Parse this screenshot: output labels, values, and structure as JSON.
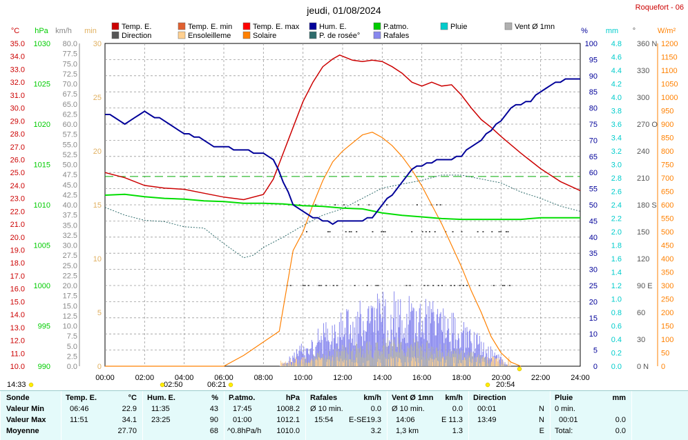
{
  "header": {
    "title": "jeudi, 01/08/2024",
    "station": "Roquefort - 06"
  },
  "legend": [
    {
      "label": "Temp. E.",
      "color": "#cc0000"
    },
    {
      "label": "Temp. E. min",
      "color": "#e06030"
    },
    {
      "label": "Temp. E. max",
      "color": "#ff0000"
    },
    {
      "label": "Hum. E.",
      "color": "#000099"
    },
    {
      "label": "P.atmo.",
      "color": "#00cc00"
    },
    {
      "label": "Pluie",
      "color": "#00cccc"
    },
    {
      "label": "Vent Ø 1mn",
      "color": "#b0b0b0"
    },
    {
      "label": "Direction",
      "color": "#555555"
    },
    {
      "label": "Ensoleilleme",
      "color": "#ffd090"
    },
    {
      "label": "Solaire",
      "color": "#ff8000"
    },
    {
      "label": "P. de rosée°",
      "color": "#2e6b6b"
    },
    {
      "label": "Rafales",
      "color": "#8888ee"
    }
  ],
  "axes": {
    "temp": {
      "unit": "°C",
      "ticks": [
        "35.0",
        "34.0",
        "33.0",
        "32.0",
        "31.0",
        "30.0",
        "29.0",
        "28.0",
        "27.0",
        "26.0",
        "25.0",
        "24.0",
        "23.0",
        "22.0",
        "21.0",
        "20.0",
        "19.0",
        "18.0",
        "17.0",
        "16.0",
        "15.0",
        "14.0",
        "13.0",
        "12.0",
        "11.0",
        "10.0"
      ],
      "color": "#cc0000"
    },
    "pressure": {
      "unit": "hPa",
      "ticks": [
        "1030",
        "1025",
        "1020",
        "1015",
        "1010",
        "1005",
        "1000",
        "995",
        "990"
      ],
      "color": "#00cc00"
    },
    "wind": {
      "unit": "km/h",
      "ticks": [
        "80.0",
        "77.5",
        "75.0",
        "72.5",
        "70.0",
        "67.5",
        "65.0",
        "62.5",
        "60.0",
        "57.5",
        "55.0",
        "52.5",
        "50.0",
        "47.5",
        "45.0",
        "42.5",
        "40.0",
        "37.5",
        "35.0",
        "32.5",
        "30.0",
        "27.5",
        "25.0",
        "22.5",
        "20.0",
        "17.5",
        "15.0",
        "12.5",
        "10.0",
        "7.5",
        "5.0",
        "2.5",
        "0.0"
      ],
      "color": "#999999"
    },
    "min": {
      "unit": "min",
      "ticks": [
        "30",
        "25",
        "20",
        "15",
        "10",
        "5",
        "0"
      ],
      "color": "#e0b060"
    },
    "hum": {
      "unit": "%",
      "ticks": [
        "100",
        "95",
        "90",
        "85",
        "80",
        "75",
        "70",
        "65",
        "60",
        "55",
        "50",
        "45",
        "40",
        "35",
        "30",
        "25",
        "20",
        "15",
        "10",
        "5",
        "0"
      ],
      "color": "#000099"
    },
    "rain": {
      "unit": "mm",
      "ticks": [
        "4.8",
        "4.6",
        "4.4",
        "4.2",
        "4.0",
        "3.8",
        "3.6",
        "3.4",
        "3.2",
        "3.0",
        "2.8",
        "2.6",
        "2.4",
        "2.2",
        "2.0",
        "1.8",
        "1.6",
        "1.4",
        "1.2",
        "1.0",
        "0.8",
        "0.6",
        "0.4",
        "0.2",
        "0.0"
      ],
      "color": "#00cccc"
    },
    "dir": {
      "unit": "°",
      "ticks": [
        "360 N",
        "330",
        "300",
        "270 O",
        "240",
        "210",
        "180 S",
        "150",
        "120",
        "90 E",
        "60",
        "30",
        "0 N"
      ],
      "color": "#555555"
    },
    "solar": {
      "unit": "W/m²",
      "ticks": [
        "1200",
        "1150",
        "1100",
        "1050",
        "1000",
        "950",
        "900",
        "850",
        "800",
        "750",
        "700",
        "650",
        "600",
        "550",
        "500",
        "450",
        "400",
        "350",
        "300",
        "250",
        "200",
        "150",
        "100",
        "50",
        "0"
      ],
      "color": "#ff8000"
    },
    "time": {
      "ticks": [
        "00:00",
        "02:00",
        "04:00",
        "06:00",
        "08:00",
        "10:00",
        "12:00",
        "14:00",
        "16:00",
        "18:00",
        "20:00",
        "22:00",
        "24:00"
      ]
    }
  },
  "markers": {
    "t1": "14:33",
    "t2": "02:50",
    "t3": "06:21",
    "t4": "20:54"
  },
  "chart_data": {
    "type": "line",
    "title": "jeudi, 01/08/2024",
    "xlim": [
      0,
      24
    ],
    "series": [
      {
        "name": "Temp. E.",
        "unit": "°C",
        "x": [
          0,
          1,
          2,
          3,
          4,
          5,
          6,
          7,
          8,
          8.5,
          9,
          9.5,
          10,
          10.5,
          11,
          11.5,
          11.85,
          12.5,
          13,
          13.5,
          14,
          14.5,
          15,
          15.5,
          16,
          16.5,
          17,
          17.5,
          18,
          18.5,
          19,
          19.5,
          20,
          21,
          22,
          23,
          24
        ],
        "y": [
          25.0,
          24.6,
          24.0,
          23.8,
          23.7,
          23.4,
          23.1,
          22.9,
          23.3,
          24.5,
          26.5,
          28.5,
          30.5,
          32.0,
          33.2,
          33.8,
          34.1,
          33.7,
          33.6,
          33.7,
          33.6,
          33.2,
          32.7,
          32.0,
          31.7,
          32.0,
          31.7,
          31.8,
          31.0,
          30.0,
          29.1,
          28.5,
          27.8,
          26.5,
          25.3,
          24.3,
          23.6
        ]
      },
      {
        "name": "Hum. E.",
        "unit": "%",
        "x": [
          0,
          0.5,
          1,
          1.5,
          2,
          2.5,
          3,
          3.5,
          4,
          4.5,
          5,
          5.5,
          6,
          6.5,
          7,
          7.5,
          8,
          8.5,
          9,
          9.5,
          10,
          10.5,
          11,
          11.5,
          12,
          12.5,
          13,
          13.5,
          14,
          14.5,
          15,
          15.5,
          16,
          16.5,
          17,
          17.5,
          18,
          18.5,
          19,
          19.5,
          20,
          20.5,
          21,
          21.5,
          22,
          22.5,
          23,
          23.5,
          24
        ],
        "y": [
          78,
          77,
          75,
          77,
          79,
          77,
          76,
          74,
          72,
          71,
          70,
          68,
          68,
          67,
          67,
          66,
          66,
          64,
          57,
          50,
          48,
          46,
          45,
          44,
          45,
          45,
          45,
          46,
          50,
          53,
          57,
          61,
          62,
          63,
          64,
          64,
          65,
          68,
          70,
          73,
          76,
          80,
          81,
          82,
          85,
          87,
          88,
          89,
          89
        ]
      },
      {
        "name": "P.atmo.",
        "unit": "hPa",
        "x": [
          0,
          1,
          2,
          3,
          4,
          5,
          6,
          7,
          8,
          9,
          10,
          11,
          12,
          13,
          14,
          15,
          16,
          17,
          18,
          19,
          20,
          21,
          22,
          23,
          24
        ],
        "y": [
          1011.2,
          1011.3,
          1011.0,
          1010.8,
          1010.7,
          1010.5,
          1010.4,
          1010.2,
          1010.2,
          1010.1,
          1009.9,
          1009.8,
          1009.6,
          1009.5,
          1009.0,
          1008.7,
          1008.5,
          1008.3,
          1008.2,
          1008.2,
          1008.2,
          1008.2,
          1008.4,
          1008.4,
          1008.4
        ]
      },
      {
        "name": "P. de rosée°",
        "unit": "°C",
        "x": [
          0,
          1,
          2,
          3,
          4,
          5,
          6,
          7,
          7.5,
          8,
          9,
          10,
          11,
          12,
          13,
          14,
          15,
          16,
          17,
          18,
          19,
          20,
          21,
          22,
          23,
          24
        ],
        "y": [
          22.3,
          21.7,
          21.3,
          21.2,
          20.8,
          20.7,
          19.5,
          18.4,
          18.6,
          19.2,
          20.0,
          20.9,
          21.7,
          22.2,
          23.0,
          23.8,
          24.1,
          24.4,
          24.8,
          24.8,
          24.5,
          24.2,
          23.5,
          23.0,
          22.4,
          22.0
        ]
      },
      {
        "name": "Solaire",
        "unit": "W/m²",
        "x": [
          0,
          6,
          7,
          8,
          8.8,
          9.5,
          10,
          10.5,
          11,
          11.5,
          12,
          12.5,
          13,
          13.5,
          14,
          14.5,
          15,
          15.5,
          16,
          16.5,
          17,
          17.5,
          18,
          18.5,
          19,
          19.5,
          20,
          20.5,
          21
        ],
        "y": [
          0,
          0,
          40,
          90,
          130,
          430,
          500,
          600,
          690,
          760,
          800,
          830,
          860,
          870,
          850,
          820,
          780,
          730,
          670,
          600,
          530,
          450,
          370,
          280,
          200,
          110,
          50,
          15,
          0
        ]
      },
      {
        "name": "Temp. E. max",
        "unit": "°C",
        "x": [
          0,
          24
        ],
        "y": [
          24.7,
          24.7
        ]
      }
    ],
    "wind": {
      "unit": "km/h",
      "x_from": 8.8,
      "x_to": 20.5,
      "rafales_max": 19.3,
      "vent_max": 11.3
    }
  },
  "table": {
    "sonde": {
      "h": "Sonde",
      "r": [
        "Valeur Min",
        "Valeur Max",
        "Moyenne"
      ]
    },
    "temp": {
      "h": "Temp. E.",
      "u": "°C",
      "r": [
        [
          "06:46",
          "22.9"
        ],
        [
          "11:51",
          "34.1"
        ],
        [
          "",
          "27.70"
        ]
      ]
    },
    "hum": {
      "h": "Hum. E.",
      "u": "%",
      "r": [
        [
          "11:35",
          "43"
        ],
        [
          "23:25",
          "90"
        ],
        [
          "",
          "68"
        ]
      ]
    },
    "patmo": {
      "h": "P.atmo.",
      "u": "hPa",
      "r": [
        [
          "17:45",
          "1008.2"
        ],
        [
          "01:00",
          "1012.1"
        ],
        [
          "^0.8hPa/h",
          "1010.0"
        ]
      ]
    },
    "rafales": {
      "h": "Rafales",
      "u": "km/h",
      "r": [
        [
          "Ø 10 min.",
          "",
          "0.0"
        ],
        [
          "15:54",
          "E-SE",
          "19.3"
        ],
        [
          "",
          "",
          "3.2"
        ]
      ]
    },
    "vent": {
      "h": "Vent Ø 1mn",
      "u": "km/h",
      "r": [
        [
          "Ø 10 min.",
          "",
          "0.0"
        ],
        [
          "14:06",
          "E",
          "11.3"
        ],
        [
          "1,3 km",
          "",
          "1.3"
        ]
      ]
    },
    "direction": {
      "h": "Direction",
      "r": [
        [
          "00:01",
          "N"
        ],
        [
          "13:49",
          "N"
        ],
        [
          "",
          "E"
        ]
      ]
    },
    "pluie": {
      "h": "Pluie",
      "u": "mm",
      "r": [
        [
          "0 min.",
          ""
        ],
        [
          "00:01",
          "0.0"
        ],
        [
          "Total:",
          "0.0"
        ]
      ]
    }
  }
}
